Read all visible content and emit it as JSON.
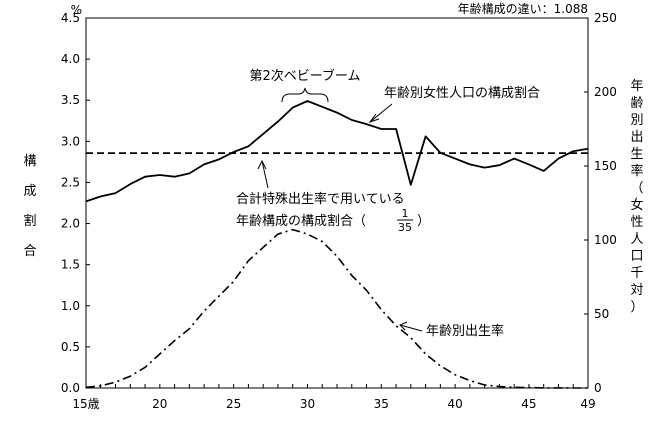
{
  "chart_data": {
    "type": "line",
    "top_note": "年齢構成の違い：1.088",
    "left_unit": "%",
    "left_axis_label": "構成割合",
    "right_axis_label": "年齢別出生率（女性人口千対）",
    "x_first_tick_label": "15歳",
    "x_ticks": [
      20,
      25,
      30,
      35,
      40,
      45,
      49
    ],
    "xlim": [
      15,
      49
    ],
    "ylim_left": [
      0,
      4.5
    ],
    "yticks_left": [
      "0.0",
      "0.5",
      "1.0",
      "1.5",
      "2.0",
      "2.5",
      "3.0",
      "3.5",
      "4.0",
      "4.5"
    ],
    "ylim_right": [
      0,
      250
    ],
    "yticks_right": [
      "0",
      "50",
      "100",
      "150",
      "200",
      "250"
    ],
    "annotations": {
      "baby_boom": "第2次ベビーブーム",
      "female_share": "年齢別女性人口の構成割合",
      "tfr_line_1": "合計特殊出生率で用いている",
      "tfr_line_2": "年齢構成の構成割合（",
      "tfr_frac_num": "1",
      "tfr_frac_den": "35",
      "tfr_close": "）",
      "birth_rate": "年齢別出生率"
    },
    "series": [
      {
        "name": "年齢別女性人口の構成割合",
        "axis": "left",
        "style": "solid",
        "x": [
          15,
          16,
          17,
          18,
          19,
          20,
          21,
          22,
          23,
          24,
          25,
          26,
          27,
          28,
          29,
          30,
          31,
          32,
          33,
          34,
          35,
          36,
          37,
          38,
          39,
          40,
          41,
          42,
          43,
          44,
          45,
          46,
          47,
          48,
          49
        ],
        "values": [
          2.27,
          2.33,
          2.37,
          2.48,
          2.57,
          2.59,
          2.57,
          2.61,
          2.72,
          2.78,
          2.87,
          2.94,
          3.09,
          3.24,
          3.41,
          3.49,
          3.42,
          3.35,
          3.26,
          3.21,
          3.15,
          3.15,
          2.47,
          3.06,
          2.86,
          2.79,
          2.72,
          2.68,
          2.71,
          2.79,
          2.72,
          2.64,
          2.79,
          2.88,
          2.91
        ]
      },
      {
        "name": "合計特殊出生率で用いている年齢構成の構成割合（1/35）",
        "axis": "left",
        "style": "dashed",
        "x": [
          15,
          49
        ],
        "values": [
          2.857,
          2.857
        ]
      },
      {
        "name": "年齢別出生率",
        "axis": "right",
        "style": "dash-dot",
        "x": [
          15,
          16,
          17,
          18,
          19,
          20,
          21,
          22,
          23,
          24,
          25,
          26,
          27,
          28,
          29,
          30,
          31,
          32,
          33,
          34,
          35,
          36,
          37,
          38,
          39,
          40,
          41,
          42,
          43,
          44,
          45,
          46,
          47,
          48,
          49
        ],
        "values": [
          0.5,
          1.5,
          4,
          8,
          14,
          23,
          32,
          40,
          52,
          62,
          72,
          86,
          95,
          104,
          107,
          104,
          99,
          89,
          76,
          66,
          53,
          42,
          34,
          23,
          15,
          9,
          5,
          2,
          1,
          0.5,
          0.3,
          0.1,
          0.05,
          0,
          0
        ]
      }
    ]
  }
}
